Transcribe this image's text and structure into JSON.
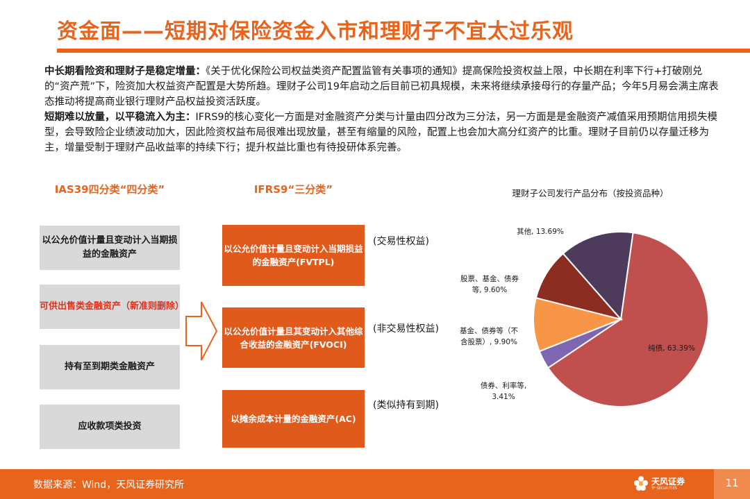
{
  "title": "资金面——短期对保险资金入市和理财子不宜太过乐观",
  "paragraphs": [
    {
      "bold": "中长期看险资和理财子是稳定增量：",
      "text": "《关于优化保险公司权益类资产配置监管有关事项的通知》提高保险投资权益上限，中长期在利率下行+打破刚兑的“资产荒”下，险资加大权益资产配置是大势所趋。理财子公司19年启动之后目前已初具规模，未来将继续承接母行的存量产品；今年5月易会满主席表态推动将提高商业银行理财产品权益投资活跃度。"
    },
    {
      "bold": "短期难以放量，以平稳流入为主：",
      "text": "IFRS9的核心变化一方面是对金融资产分类与计量由四分改为三分法，另一方面是是金融资产减值采用预期信用损失模型，会导致险企业绩波动加大，因此险资权益布局很难出现放量，甚至有缩量的风险，配置上也会加大高分红资产的比重。理财子目前仍以存量迁移为主，增量受制于理财产品收益率的持续下行；提升权益比重也有待投研体系完善。"
    }
  ],
  "ias39": {
    "heading": "IAS39四分类“四分类”",
    "items": [
      "以公允价值计量且变动计入当期损益的金融资产",
      "可供出售类金融资产（新准则删除）",
      "持有至到期类金融资产",
      "应收款项类投资"
    ]
  },
  "ifrs9": {
    "heading": "IFRS9“三分类”",
    "items": [
      {
        "label": "以公允价值计量且变动计入当期损益的金融资产(FVTPL)",
        "note": "(交易性权益)"
      },
      {
        "label": "以公允价值计量且其变动计入其他综合收益的金融资产(FVOCI)",
        "note": "(非交易性权益)"
      },
      {
        "label": "以摊余成本计量的金融资产(AC)",
        "note": "(类似持有到期)"
      }
    ]
  },
  "chart_data": {
    "type": "pie",
    "title": "理财子公司发行产品分布（按投资品种）",
    "slices": [
      {
        "name": "纯债",
        "value": 63.39,
        "label": "纯债, 63.39%",
        "color": "#c0504d"
      },
      {
        "name": "债券、利率等",
        "value": 3.41,
        "label": "债券、利率等, 3.41%",
        "color": "#7e66b0"
      },
      {
        "name": "基金、债券等（不含股票）",
        "value": 9.9,
        "label": "基金、债券等（不含股票）, 9.90%",
        "color": "#f79646"
      },
      {
        "name": "股票、基金、债券等",
        "value": 9.6,
        "label": "股票、基金、债券等, 9.60%",
        "color": "#8c2d22"
      },
      {
        "name": "其他",
        "value": 13.69,
        "label": "其他, 13.69%",
        "color": "#4e3b5c"
      }
    ]
  },
  "footer": {
    "source": "数据来源：Wind，天风证券研究所",
    "logo_name": "天风证券",
    "logo_sub": "TF SECURITIES",
    "page": "11"
  },
  "colors": {
    "accent": "#e8631c",
    "box_orange": "#e05a1c",
    "box_gray": "#d9d9d9"
  }
}
